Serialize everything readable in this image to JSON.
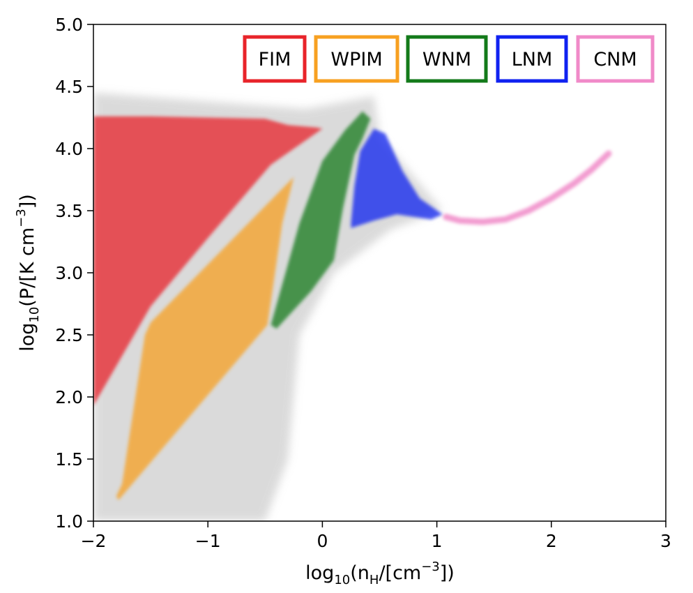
{
  "chart_data": {
    "type": "heatmap",
    "title": "",
    "xlabel": {
      "base": "log",
      "sub": "10",
      "main": "(n",
      "sub2": "H",
      "rest": "/[cm",
      "sup": "−3",
      "end": "])"
    },
    "ylabel": {
      "base": "log",
      "sub": "10",
      "main": "(P/[K cm",
      "sup": "−3",
      "end": "])"
    },
    "xlim": [
      -2,
      3
    ],
    "ylim": [
      1.0,
      5.0
    ],
    "x_ticks": [
      -2,
      -1,
      0,
      1,
      2,
      3
    ],
    "x_tick_labels": [
      "−2",
      "−1",
      "0",
      "1",
      "2",
      "3"
    ],
    "y_ticks": [
      1.0,
      1.5,
      2.0,
      2.5,
      3.0,
      3.5,
      4.0,
      4.5,
      5.0
    ],
    "y_tick_labels": [
      "1.0",
      "1.5",
      "2.0",
      "2.5",
      "3.0",
      "3.5",
      "4.0",
      "4.5",
      "5.0"
    ],
    "legend": [
      "FIM",
      "WPIM",
      "WNM",
      "LNM",
      "CNM"
    ],
    "legend_position": "top-right",
    "colors": {
      "FIM": "#e8242a",
      "WPIM": "#f7a021",
      "WNM": "#137a1a",
      "LNM": "#1022f0",
      "CNM": "#f08ac8",
      "background": "#bdbdbd"
    },
    "regions": {
      "FIM": [
        [
          -2.0,
          4.26
        ],
        [
          -1.5,
          4.26
        ],
        [
          -0.5,
          4.24
        ],
        [
          -0.3,
          4.19
        ],
        [
          -0.05,
          4.17
        ],
        [
          0.0,
          4.16
        ],
        [
          -0.45,
          3.87
        ],
        [
          -1.0,
          3.28
        ],
        [
          -1.5,
          2.73
        ],
        [
          -2.0,
          1.93
        ]
      ],
      "WPIM": [
        [
          -1.8,
          1.2
        ],
        [
          -1.75,
          1.3
        ],
        [
          -1.55,
          2.5
        ],
        [
          -1.5,
          2.6
        ],
        [
          -0.25,
          3.77
        ],
        [
          -0.35,
          3.4
        ],
        [
          -0.48,
          2.58
        ],
        [
          -1.78,
          1.17
        ]
      ],
      "WNM": [
        [
          -0.45,
          2.58
        ],
        [
          -0.2,
          3.4
        ],
        [
          0.0,
          3.9
        ],
        [
          0.2,
          4.15
        ],
        [
          0.35,
          4.3
        ],
        [
          0.42,
          4.24
        ],
        [
          0.35,
          4.08
        ],
        [
          0.28,
          3.95
        ],
        [
          0.18,
          3.52
        ],
        [
          0.1,
          3.1
        ],
        [
          -0.1,
          2.85
        ],
        [
          -0.4,
          2.55
        ]
      ],
      "LNM": [
        [
          0.25,
          3.4
        ],
        [
          0.28,
          3.7
        ],
        [
          0.33,
          3.98
        ],
        [
          0.45,
          4.16
        ],
        [
          0.55,
          4.12
        ],
        [
          0.7,
          3.82
        ],
        [
          0.85,
          3.6
        ],
        [
          1.05,
          3.47
        ],
        [
          0.95,
          3.43
        ],
        [
          0.65,
          3.47
        ],
        [
          0.45,
          3.42
        ],
        [
          0.25,
          3.36
        ]
      ],
      "CNM": [
        [
          1.08,
          3.45
        ],
        [
          1.2,
          3.42
        ],
        [
          1.4,
          3.41
        ],
        [
          1.6,
          3.43
        ],
        [
          1.8,
          3.5
        ],
        [
          2.0,
          3.6
        ],
        [
          2.2,
          3.72
        ],
        [
          2.35,
          3.83
        ],
        [
          2.5,
          3.96
        ]
      ],
      "background": [
        [
          -2.0,
          4.45
        ],
        [
          -0.15,
          4.32
        ],
        [
          0.45,
          4.42
        ],
        [
          0.5,
          4.1
        ],
        [
          1.05,
          3.5
        ],
        [
          0.6,
          3.35
        ],
        [
          0.1,
          3.0
        ],
        [
          -0.2,
          2.5
        ],
        [
          -0.3,
          1.5
        ],
        [
          -0.5,
          1.0
        ],
        [
          -1.5,
          1.0
        ],
        [
          -2.0,
          1.0
        ]
      ]
    }
  }
}
